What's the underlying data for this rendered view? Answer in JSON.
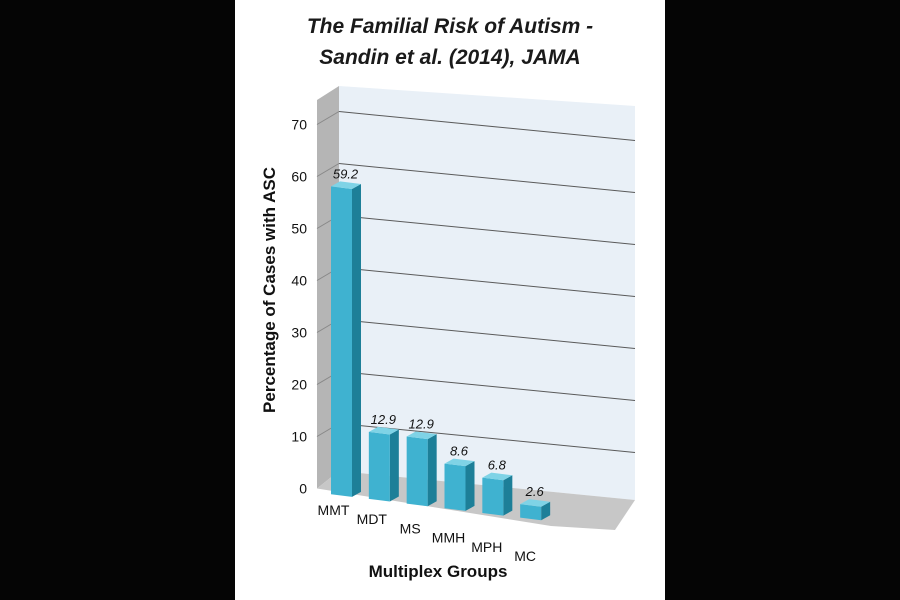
{
  "chart_data": {
    "type": "bar",
    "title_lines": [
      "The Familial Risk of Autism -",
      "Sandin et al. (2014), JAMA"
    ],
    "categories": [
      "MMT",
      "MDT",
      "MS",
      "MMH",
      "MPH",
      "MC"
    ],
    "values": [
      59.2,
      12.9,
      12.9,
      8.6,
      6.8,
      2.6
    ],
    "value_labels": [
      "59.2",
      "12.9",
      "12.9",
      "8.6",
      "6.8",
      "2.6"
    ],
    "xlabel": "Multiplex Groups",
    "ylabel": "Percentage of Cases with ASC",
    "ylim": [
      0,
      70
    ],
    "yticks": [
      "0",
      "10",
      "20",
      "30",
      "40",
      "50",
      "60",
      "70"
    ],
    "grid": true,
    "style": "3d-column"
  },
  "colors": {
    "bar_front": "#3fb2d0",
    "bar_side": "#1d7f98",
    "bar_top": "#7fd3e6",
    "backwall": "#e9f0f7",
    "sidewall": "#b5b5b5",
    "floor": "#c7c7c7",
    "page": "#ffffff",
    "letterbox": "#050505"
  }
}
